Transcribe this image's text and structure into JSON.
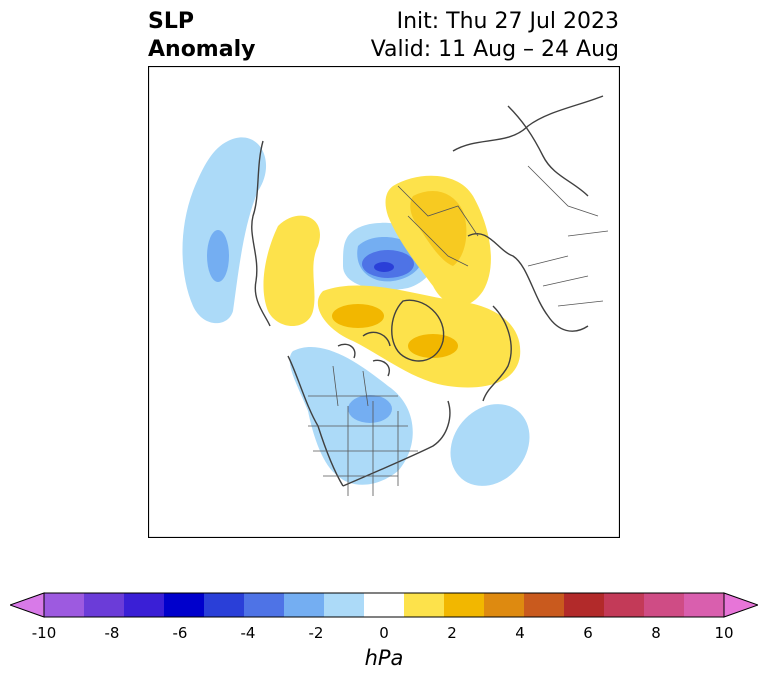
{
  "header": {
    "title_line1": "SLP",
    "title_line2": "Anomaly",
    "init": "Init: Thu 27 Jul 2023",
    "valid": "Valid: 11 Aug – 24 Aug"
  },
  "colorbar": {
    "label": "hPa",
    "colors": [
      "#d87ae8",
      "#9d5ae0",
      "#6b3cd8",
      "#3a1fd6",
      "#0000cc",
      "#2a3fd8",
      "#4e73e6",
      "#74aef2",
      "#acdaf8",
      "#ffffff",
      "#fde24b",
      "#f2b700",
      "#de8a10",
      "#c95a1e",
      "#b22a2a",
      "#c33a58",
      "#cf4c85",
      "#d95fae",
      "#e775d8"
    ],
    "ticks": [
      "-10",
      "-8",
      "-6",
      "-4",
      "-2",
      "0",
      "2",
      "4",
      "6",
      "8",
      "10"
    ]
  },
  "map_colors": {
    "blue_light": "#acdaf8",
    "blue_mid": "#74aef2",
    "blue_dark": "#4e73e6",
    "blue_deep": "#2a3fd8",
    "yellow": "#fde24b",
    "gold": "#f2b700",
    "coast": "#404040"
  }
}
